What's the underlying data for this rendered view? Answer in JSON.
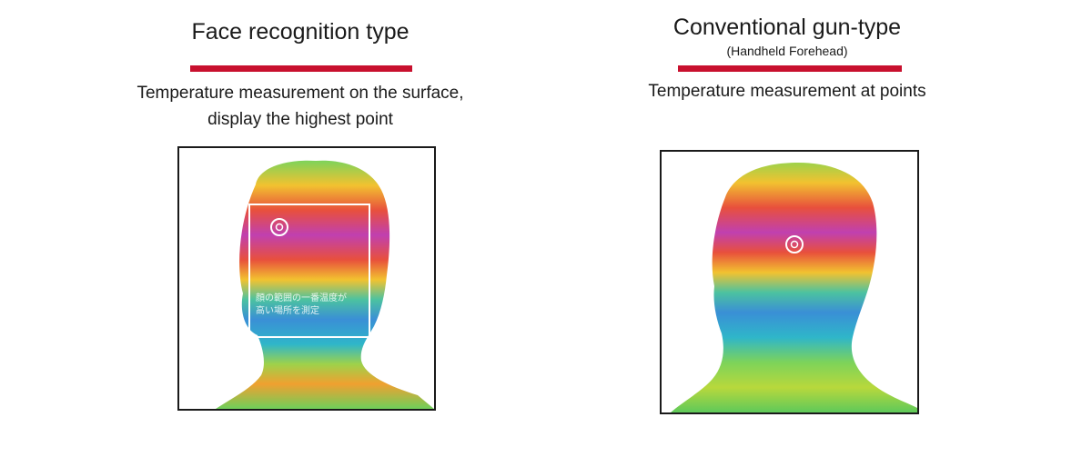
{
  "left": {
    "title": "Face recognition type",
    "description_line1": "Temperature measurement on the surface,",
    "description_line2": "display the highest point",
    "overlay_text_line1": "顔の範囲の一番温度が",
    "overlay_text_line2": "高い場所を測定"
  },
  "right": {
    "title": "Conventional gun-type",
    "subtitle": "(Handheld Forehead)",
    "description": "Temperature measurement at points"
  },
  "colors": {
    "accent_rule": "#c8102e",
    "frame": "#1a1a1a",
    "heat_hot": "#d63a8c",
    "heat_warm": "#f2c230",
    "heat_cool": "#3a8fd6"
  },
  "icons": [
    "target-marker-icon",
    "head-silhouette"
  ]
}
